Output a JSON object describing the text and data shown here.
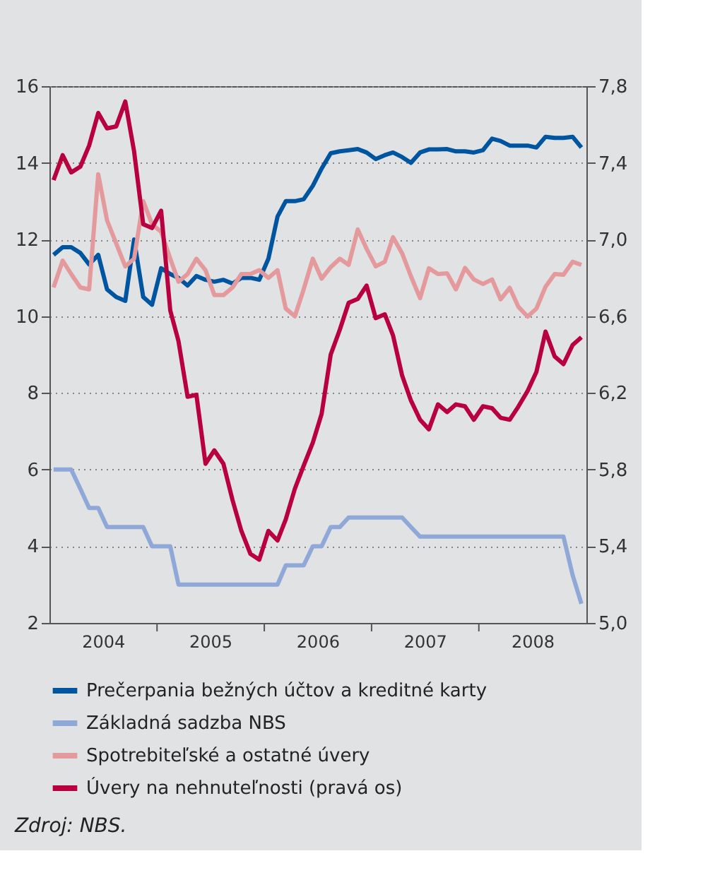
{
  "chart_data": {
    "type": "line",
    "x": [
      "2004-01-15",
      "2004-02-15",
      "2004-03-15",
      "2004-04-15",
      "2004-05-15",
      "2004-06-15",
      "2004-07-15",
      "2004-08-15",
      "2004-09-15",
      "2004-10-15",
      "2004-11-15",
      "2004-12-15",
      "2005-01-15",
      "2005-02-15",
      "2005-03-15",
      "2005-04-15",
      "2005-05-15",
      "2005-06-15",
      "2005-07-15",
      "2005-08-15",
      "2005-09-15",
      "2005-10-15",
      "2005-11-15",
      "2005-12-15",
      "2006-01-15",
      "2006-02-15",
      "2006-03-15",
      "2006-04-15",
      "2006-05-15",
      "2006-06-15",
      "2006-07-15",
      "2006-08-15",
      "2006-09-15",
      "2006-10-15",
      "2006-11-15",
      "2006-12-15",
      "2007-01-15",
      "2007-02-15",
      "2007-03-15",
      "2007-04-15",
      "2007-05-15",
      "2007-06-15",
      "2007-07-15",
      "2007-08-15",
      "2007-09-15",
      "2007-10-15",
      "2007-11-15",
      "2007-12-15",
      "2008-01-15",
      "2008-02-15",
      "2008-03-15",
      "2008-04-15",
      "2008-05-15",
      "2008-06-15",
      "2008-07-15",
      "2008-08-15",
      "2008-09-15",
      "2008-10-15",
      "2008-11-15",
      "2008-12-15"
    ],
    "series": [
      {
        "name": "Prečerpania bežných účtov a kreditné karty",
        "color": "#0055a0",
        "values": [
          11.6,
          11.8,
          11.8,
          11.65,
          11.35,
          11.6,
          10.7,
          10.5,
          10.4,
          12.0,
          10.5,
          10.3,
          11.25,
          11.1,
          11.0,
          10.8,
          11.05,
          10.95,
          10.9,
          10.95,
          10.85,
          11.0,
          11.0,
          10.95,
          11.5,
          12.6,
          13.0,
          13.0,
          13.05,
          13.4,
          13.85,
          14.25,
          14.3,
          14.33,
          14.36,
          14.27,
          14.1,
          14.2,
          14.27,
          14.15,
          14.0,
          14.27,
          14.35,
          14.35,
          14.36,
          14.3,
          14.3,
          14.27,
          14.33,
          14.63,
          14.57,
          14.45,
          14.45,
          14.45,
          14.4,
          14.68,
          14.65,
          14.65,
          14.68,
          14.4
        ]
      },
      {
        "name": "Základná sadzba NBS",
        "color": "#8fa8d8",
        "values": [
          6.0,
          6.0,
          6.0,
          5.5,
          5.0,
          5.0,
          4.5,
          4.5,
          4.5,
          4.5,
          4.5,
          4.0,
          4.0,
          4.0,
          3.0,
          3.0,
          3.0,
          3.0,
          3.0,
          3.0,
          3.0,
          3.0,
          3.0,
          3.0,
          3.0,
          3.0,
          3.5,
          3.5,
          3.5,
          4.0,
          4.0,
          4.5,
          4.5,
          4.75,
          4.75,
          4.75,
          4.75,
          4.75,
          4.75,
          4.75,
          4.5,
          4.25,
          4.25,
          4.25,
          4.25,
          4.25,
          4.25,
          4.25,
          4.25,
          4.25,
          4.25,
          4.25,
          4.25,
          4.25,
          4.25,
          4.25,
          4.25,
          4.25,
          3.25,
          2.5
        ]
      },
      {
        "name": "Spotrebiteľské a ostatné úvery",
        "color": "#e4999c",
        "values": [
          10.75,
          11.45,
          11.1,
          10.75,
          10.7,
          13.7,
          12.5,
          11.9,
          11.3,
          11.5,
          13.0,
          12.4,
          12.2,
          11.5,
          10.9,
          11.1,
          11.5,
          11.2,
          10.55,
          10.55,
          10.75,
          11.1,
          11.1,
          11.2,
          11.0,
          11.2,
          10.2,
          10.0,
          10.7,
          11.5,
          10.98,
          11.28,
          11.5,
          11.34,
          12.26,
          11.76,
          11.3,
          11.42,
          12.06,
          11.64,
          11.04,
          10.47,
          11.25,
          11.1,
          11.12,
          10.7,
          11.26,
          10.96,
          10.84,
          10.96,
          10.44,
          10.74,
          10.24,
          9.99,
          10.2,
          10.77,
          11.1,
          11.08,
          11.42,
          11.34
        ]
      },
      {
        "name": "Úvery na nehnuteľnosti (pravá os)",
        "color": "#b8003f",
        "axis": "y2",
        "values": [
          7.31,
          7.44,
          7.35,
          7.38,
          7.49,
          7.66,
          7.58,
          7.59,
          7.72,
          7.46,
          7.08,
          7.06,
          7.15,
          6.63,
          6.47,
          6.18,
          6.19,
          5.83,
          5.9,
          5.83,
          5.64,
          5.48,
          5.36,
          5.33,
          5.48,
          5.43,
          5.54,
          5.7,
          5.82,
          5.94,
          6.09,
          6.4,
          6.53,
          6.67,
          6.69,
          6.76,
          6.59,
          6.61,
          6.5,
          6.29,
          6.16,
          6.06,
          6.01,
          6.14,
          6.1,
          6.14,
          6.13,
          6.06,
          6.13,
          6.12,
          6.07,
          6.06,
          6.13,
          6.21,
          6.31,
          6.52,
          6.39,
          6.35,
          6.45,
          6.49
        ]
      }
    ],
    "xlim": [
      "2004-01-01",
      "2009-01-01"
    ],
    "xticks": [
      {
        "value": "2004-07-01",
        "label": "2004"
      },
      {
        "value": "2005-01-01",
        "label": null
      },
      {
        "value": "2005-07-01",
        "label": "2005"
      },
      {
        "value": "2006-01-01",
        "label": null
      },
      {
        "value": "2006-07-01",
        "label": "2006"
      },
      {
        "value": "2007-01-01",
        "label": null
      },
      {
        "value": "2007-07-01",
        "label": "2007"
      },
      {
        "value": "2008-01-01",
        "label": null
      },
      {
        "value": "2008-07-01",
        "label": "2008"
      }
    ],
    "ylim": [
      2,
      16
    ],
    "yticks": [
      2,
      4,
      6,
      8,
      10,
      12,
      14,
      16
    ],
    "y2lim": [
      5.0,
      7.8
    ],
    "y2ticks": [
      {
        "value": 5.0,
        "label": "5,0"
      },
      {
        "value": 5.4,
        "label": "5,4"
      },
      {
        "value": 5.8,
        "label": "5,8"
      },
      {
        "value": 6.2,
        "label": "6,2"
      },
      {
        "value": 6.6,
        "label": "6,6"
      },
      {
        "value": 7.0,
        "label": "7,0"
      },
      {
        "value": 7.4,
        "label": "7,4"
      },
      {
        "value": 7.8,
        "label": "7,8"
      }
    ],
    "grid": "y",
    "legend": "bottom",
    "line_style": "solid",
    "marker": "none",
    "annotations": [
      "Zdroj: NBS."
    ]
  }
}
